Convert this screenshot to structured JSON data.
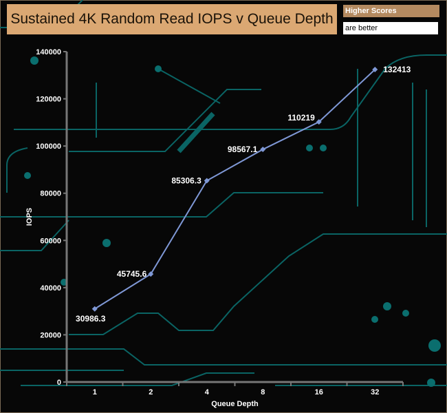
{
  "chart_data": {
    "type": "line",
    "title": "Sustained 4K Random Read IOPS v Queue Depth",
    "legend_note": [
      "Higher Scores",
      "are better"
    ],
    "xlabel": "Queue Depth",
    "ylabel": "IOPS",
    "categories": [
      "1",
      "2",
      "4",
      "8",
      "16",
      "32"
    ],
    "values": [
      30986.3,
      45745.6,
      85306.3,
      98567.1,
      110219,
      132413
    ],
    "data_labels": [
      "30986.3",
      "45745.6",
      "85306.3",
      "98567.1",
      "110219",
      "132413"
    ],
    "ylim": [
      0,
      140000
    ],
    "yticks": [
      0,
      20000,
      40000,
      60000,
      80000,
      100000,
      120000,
      140000
    ],
    "grid": false,
    "colors": {
      "line": "#7f98d6",
      "title_bg": "#dba873",
      "legend_bg": "#b48a60",
      "background": "#070707",
      "circuit": "#0a6464"
    }
  }
}
